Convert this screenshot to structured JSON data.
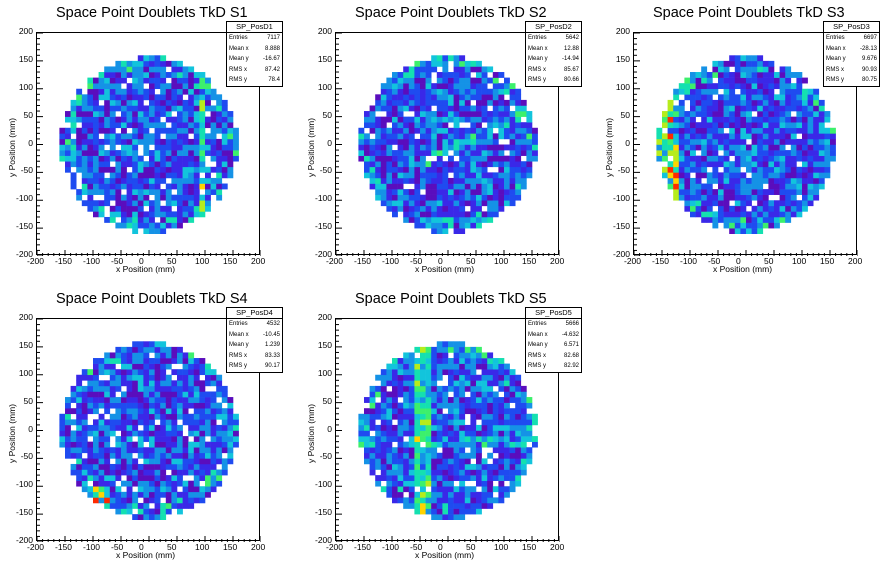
{
  "colors": [
    "#5a0dbd",
    "#3a28e8",
    "#1f4bf0",
    "#1592e6",
    "#12c4dc",
    "#14e0b0",
    "#3cf06c",
    "#b6ec1c",
    "#ffd400",
    "#ff2a00"
  ],
  "chart_data": [
    {
      "type": "heatmap",
      "title": "Space Point Doublets TkD S1",
      "stats_name": "SP_PosD1",
      "stats": [
        [
          "Entries",
          "7117"
        ],
        [
          "Mean x",
          "8.888"
        ],
        [
          "Mean y",
          "-16.67"
        ],
        [
          "RMS x",
          "87.42"
        ],
        [
          "RMS y",
          "78.4"
        ]
      ],
      "xlabel": "x Position (mm)",
      "ylabel": "y Position (mm)",
      "xlim": [
        -200,
        200
      ],
      "ylim": [
        -200,
        200
      ],
      "radius_mm": 160,
      "features": [
        {
          "kind": "vline",
          "at": 95,
          "width": 7,
          "boost": 4
        }
      ]
    },
    {
      "type": "heatmap",
      "title": "Space Point Doublets TkD S2",
      "stats_name": "SP_PosD2",
      "stats": [
        [
          "Entries",
          "5642"
        ],
        [
          "Mean x",
          "12.88"
        ],
        [
          "Mean y",
          "-14.94"
        ],
        [
          "RMS x",
          "85.67"
        ],
        [
          "RMS y",
          "80.66"
        ]
      ],
      "xlabel": "x Position (mm)",
      "ylabel": "y Position (mm)",
      "xlim": [
        -200,
        200
      ],
      "ylim": [
        -200,
        200
      ],
      "radius_mm": 160,
      "features": [
        {
          "kind": "diag",
          "boost": 3
        }
      ]
    },
    {
      "type": "heatmap",
      "title": "Space Point Doublets TkD S3",
      "stats_name": "SP_PosD3",
      "stats": [
        [
          "Entries",
          "6697"
        ],
        [
          "Mean x",
          "-28.13"
        ],
        [
          "Mean y",
          "9.676"
        ],
        [
          "RMS x",
          "90.93"
        ],
        [
          "RMS y",
          "80.75"
        ]
      ],
      "xlabel": "x Position (mm)",
      "ylabel": "y Position (mm)",
      "xlim": [
        -200,
        200
      ],
      "ylim": [
        -200,
        200
      ],
      "radius_mm": 160,
      "features": [
        {
          "kind": "vline",
          "at": -140,
          "width": 18,
          "boost": 4
        }
      ]
    },
    {
      "type": "heatmap",
      "title": "Space Point Doublets TkD S4",
      "stats_name": "SP_PosD4",
      "stats": [
        [
          "Entries",
          "4532"
        ],
        [
          "Mean x",
          "-10.45"
        ],
        [
          "Mean y",
          "1.239"
        ],
        [
          "RMS x",
          "83.33"
        ],
        [
          "RMS y",
          "90.17"
        ]
      ],
      "xlabel": "x Position (mm)",
      "ylabel": "y Position (mm)",
      "xlim": [
        -200,
        200
      ],
      "ylim": [
        -200,
        200
      ],
      "radius_mm": 160,
      "features": [
        {
          "kind": "spot",
          "at": [
            -85,
            -115
          ],
          "r": 20,
          "boost": 4
        }
      ]
    },
    {
      "type": "heatmap",
      "title": "Space Point Doublets TkD S5",
      "stats_name": "SP_PosD5",
      "stats": [
        [
          "Entries",
          "5666"
        ],
        [
          "Mean x",
          "-4.632"
        ],
        [
          "Mean y",
          "6.571"
        ],
        [
          "RMS x",
          "82.68"
        ],
        [
          "RMS y",
          "82.92"
        ]
      ],
      "xlabel": "x Position (mm)",
      "ylabel": "y Position (mm)",
      "xlim": [
        -200,
        200
      ],
      "ylim": [
        -200,
        200
      ],
      "radius_mm": 160,
      "features": [
        {
          "kind": "vline",
          "at": -45,
          "width": 12,
          "boost": 3
        },
        {
          "kind": "hline",
          "at": -20,
          "width": 10,
          "boost": 2
        }
      ]
    }
  ]
}
